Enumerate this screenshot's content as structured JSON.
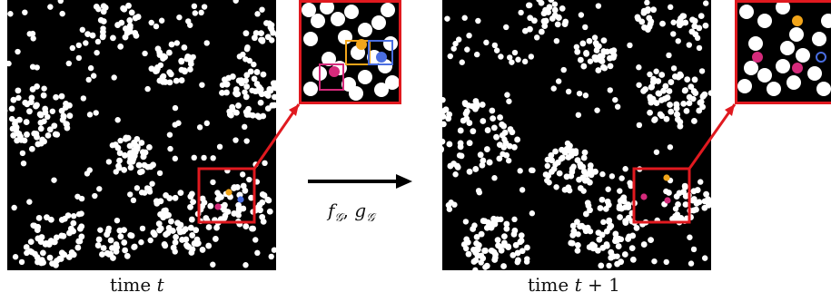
{
  "captions": {
    "left_prefix": "time ",
    "left_var": "t",
    "right_prefix": "time ",
    "right_var": "t",
    "right_suffix": " + 1"
  },
  "arrow_label": {
    "f": "f",
    "f_sub": "𝒢",
    "sep": ", ",
    "g": "g",
    "g_sub": "𝒢"
  },
  "colors": {
    "background": "#000000",
    "particle": "#ffffff",
    "highlight_box": "#e0191f",
    "orange": "#f2a51a",
    "blue": "#4a6ee0",
    "magenta": "#d52a7b",
    "arrow": "#000000"
  }
}
